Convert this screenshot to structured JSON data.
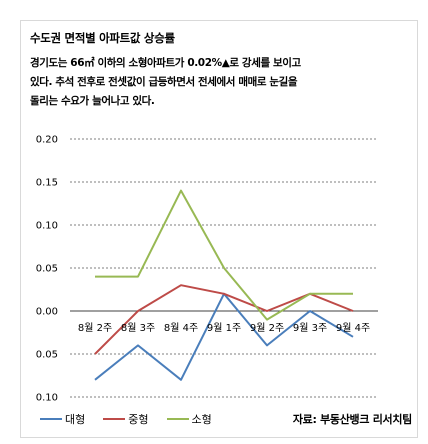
{
  "title": "수도권 면적별 아파트값 상승률",
  "description": [
    "경기도는 66㎡ 이하의 소형아파트가 0.02%▲로 강세를 보이고",
    "있다. 추석 전후로 전셋값이 급등하면서 전세에서 매매로 눈길을",
    "돌리는 수요가 늘어나고 있다."
  ],
  "source": "자료: 부동산뱅크 리서치팀",
  "colors": {
    "대형": "#4a7ebb",
    "중형": "#be4b48",
    "소형": "#98b954",
    "grid": "#000000"
  },
  "chart_data": {
    "type": "line",
    "categories": [
      "8월 2주",
      "8월 3주",
      "8월 4주",
      "9월 1주",
      "9월 2주",
      "9월 3주",
      "9월 4주"
    ],
    "y_tick_labels": [
      "0.20",
      "0.15",
      "0.10",
      "0.05",
      "0.00",
      "0.05",
      "0.10"
    ],
    "ylim": [
      -0.1,
      0.2
    ],
    "y_ticks": [
      0.2,
      0.15,
      0.1,
      0.05,
      0.0,
      -0.05,
      -0.1
    ],
    "grid": true,
    "legend_position": "bottom-left",
    "series": [
      {
        "name": "대형",
        "values": [
          -0.08,
          -0.04,
          -0.08,
          0.02,
          -0.04,
          0.0,
          -0.03
        ]
      },
      {
        "name": "중형",
        "values": [
          -0.05,
          0.0,
          0.03,
          0.02,
          0.0,
          0.02,
          0.0
        ]
      },
      {
        "name": "소형",
        "values": [
          0.04,
          0.04,
          0.14,
          0.05,
          -0.01,
          0.02,
          0.02
        ]
      }
    ]
  }
}
